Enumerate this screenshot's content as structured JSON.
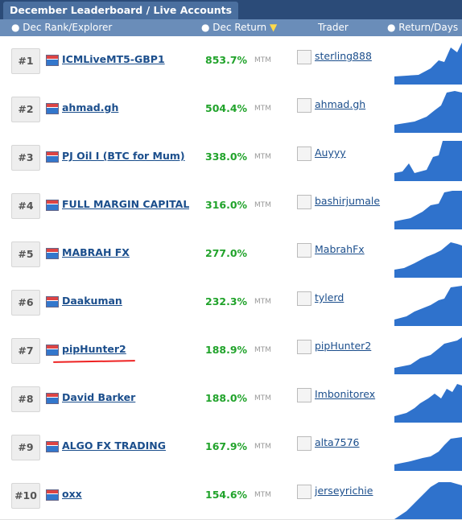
{
  "header": {
    "title": "December Leaderboard / Live Accounts"
  },
  "columns": [
    "Dec Rank/Explorer",
    "Dec Return",
    "Trader",
    "Return/Days"
  ],
  "rows": [
    {
      "rank": "#1",
      "name": "ICMLiveMT5-GBP1",
      "return": "853.7%",
      "tag": "MTM",
      "trader": "sterling888"
    },
    {
      "rank": "#2",
      "name": "ahmad.gh",
      "return": "504.4%",
      "tag": "MTM",
      "trader": "ahmad.gh"
    },
    {
      "rank": "#3",
      "name": "PJ Oil I (BTC for Mum)",
      "return": "338.0%",
      "tag": "MTM",
      "trader": "Auyyy"
    },
    {
      "rank": "#4",
      "name": "FULL MARGIN CAPITAL",
      "return": "316.0%",
      "tag": "MTM",
      "trader": "bashirjumale"
    },
    {
      "rank": "#5",
      "name": "MABRAH FX",
      "return": "277.0%",
      "trader": "MabrahFx"
    },
    {
      "rank": "#6",
      "name": "Daakuman",
      "return": "232.3%",
      "tag": "MTM",
      "trader": "tylerd"
    },
    {
      "rank": "#7",
      "name": "pipHunter2",
      "return": "188.9%",
      "tag": "MTM",
      "trader": "pipHunter2"
    },
    {
      "rank": "#8",
      "name": "David Barker",
      "return": "188.0%",
      "tag": "MTM",
      "trader": "Imbonitorex"
    },
    {
      "rank": "#9",
      "name": "ALGO FX TRADING",
      "return": "167.9%",
      "tag": "MTM",
      "trader": "alta7576"
    },
    {
      "rank": "#10",
      "name": "oxx",
      "return": "154.6%",
      "tag": "MTM",
      "trader": "jerseyrichie"
    }
  ]
}
